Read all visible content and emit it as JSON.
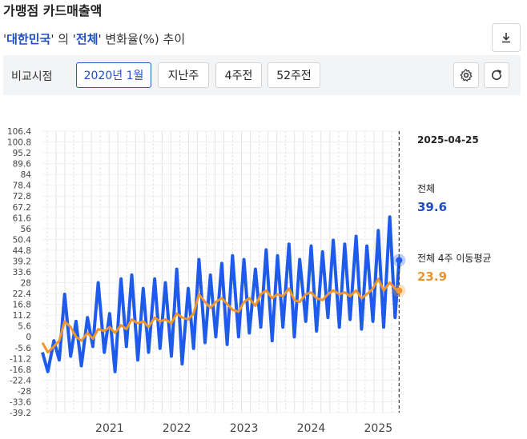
{
  "header": {
    "title": "가맹점 카드매출액"
  },
  "subtitle": {
    "q1": "'",
    "region": "대한민국",
    "q2": "'",
    "mid": " 의 ",
    "q3": "'",
    "category": "전체",
    "q4": "'",
    "rest": " 변화율(%) 추이"
  },
  "toolbar": {
    "label": "비교시점",
    "options": [
      "2020년 1월",
      "지난주",
      "4주전",
      "52주전"
    ],
    "active_index": 0
  },
  "icons": {
    "download": "download-icon",
    "settings": "gear-icon",
    "refresh": "refresh-icon"
  },
  "tooltip": {
    "date": "2025-04-25",
    "series1_name": "전체",
    "series1_value": "39.6",
    "series2_name": "전체 4주 이동평균",
    "series2_value": "23.9"
  },
  "chart_data": {
    "type": "line",
    "ylim": [
      -39.2,
      106.4
    ],
    "y_ticks": [
      "106.4",
      "100.8",
      "95.2",
      "89.6",
      "84",
      "78.4",
      "72.8",
      "67.2",
      "61.6",
      "56",
      "50.4",
      "44.8",
      "39.2",
      "33.6",
      "28",
      "22.4",
      "16.8",
      "11.2",
      "5.6",
      "0",
      "-5.6",
      "-11.2",
      "-16.8",
      "-22.4",
      "-28",
      "-33.6",
      "-39.2"
    ],
    "x_ticks": [
      "2021",
      "2022",
      "2023",
      "2024",
      "2025"
    ],
    "x_tick_positions": [
      2021,
      2022,
      2023,
      2024,
      2025
    ],
    "x_range": [
      2020.0,
      2025.33
    ],
    "series": [
      {
        "name": "전체",
        "color": "#1f5bea",
        "x": [
          2020.0,
          2020.08,
          2020.17,
          2020.25,
          2020.33,
          2020.42,
          2020.5,
          2020.58,
          2020.67,
          2020.75,
          2020.83,
          2020.92,
          2021.0,
          2021.08,
          2021.17,
          2021.25,
          2021.33,
          2021.42,
          2021.5,
          2021.58,
          2021.67,
          2021.75,
          2021.83,
          2021.92,
          2022.0,
          2022.08,
          2022.17,
          2022.25,
          2022.33,
          2022.42,
          2022.5,
          2022.58,
          2022.67,
          2022.75,
          2022.83,
          2022.92,
          2023.0,
          2023.08,
          2023.17,
          2023.25,
          2023.33,
          2023.42,
          2023.5,
          2023.58,
          2023.67,
          2023.75,
          2023.83,
          2023.92,
          2024.0,
          2024.08,
          2024.17,
          2024.25,
          2024.33,
          2024.42,
          2024.5,
          2024.58,
          2024.67,
          2024.75,
          2024.83,
          2024.92,
          2025.0,
          2025.08,
          2025.17,
          2025.25,
          2025.31
        ],
        "y": [
          -8,
          -18,
          -2,
          -12,
          22,
          -10,
          8,
          -15,
          10,
          -5,
          28,
          -8,
          12,
          -18,
          30,
          -5,
          32,
          -12,
          25,
          -8,
          30,
          -6,
          28,
          -10,
          35,
          -14,
          25,
          -6,
          40,
          -3,
          32,
          0,
          38,
          -4,
          42,
          0,
          40,
          2,
          35,
          5,
          45,
          -2,
          42,
          5,
          48,
          0,
          40,
          8,
          47,
          3,
          44,
          10,
          50,
          5,
          48,
          9,
          52,
          4,
          47,
          8,
          55,
          5,
          62,
          10,
          39.6
        ]
      },
      {
        "name": "전체 4주 이동평균",
        "color": "#f0962e",
        "x": [
          2020.0,
          2020.08,
          2020.17,
          2020.25,
          2020.33,
          2020.42,
          2020.5,
          2020.58,
          2020.67,
          2020.75,
          2020.83,
          2020.92,
          2021.0,
          2021.08,
          2021.17,
          2021.25,
          2021.33,
          2021.42,
          2021.5,
          2021.58,
          2021.67,
          2021.75,
          2021.83,
          2021.92,
          2022.0,
          2022.08,
          2022.17,
          2022.25,
          2022.33,
          2022.42,
          2022.5,
          2022.58,
          2022.67,
          2022.75,
          2022.83,
          2022.92,
          2023.0,
          2023.08,
          2023.17,
          2023.25,
          2023.33,
          2023.42,
          2023.5,
          2023.58,
          2023.67,
          2023.75,
          2023.83,
          2023.92,
          2024.0,
          2024.08,
          2024.17,
          2024.25,
          2024.33,
          2024.42,
          2024.5,
          2024.58,
          2024.67,
          2024.75,
          2024.83,
          2024.92,
          2025.0,
          2025.08,
          2025.17,
          2025.25,
          2025.31
        ],
        "y": [
          -3,
          -8,
          -5,
          -2,
          8,
          5,
          0,
          -2,
          2,
          -1,
          4,
          3,
          5,
          2,
          6,
          4,
          9,
          7,
          8,
          5,
          10,
          8,
          9,
          7,
          12,
          10,
          9,
          12,
          22,
          18,
          15,
          18,
          20,
          17,
          14,
          13,
          18,
          20,
          16,
          22,
          24,
          20,
          22,
          21,
          25,
          19,
          18,
          22,
          23,
          20,
          19,
          22,
          24,
          22,
          23,
          21,
          24,
          20,
          22,
          25,
          30,
          24,
          28,
          25,
          23.9
        ]
      }
    ],
    "cursor_x": 2025.31
  }
}
